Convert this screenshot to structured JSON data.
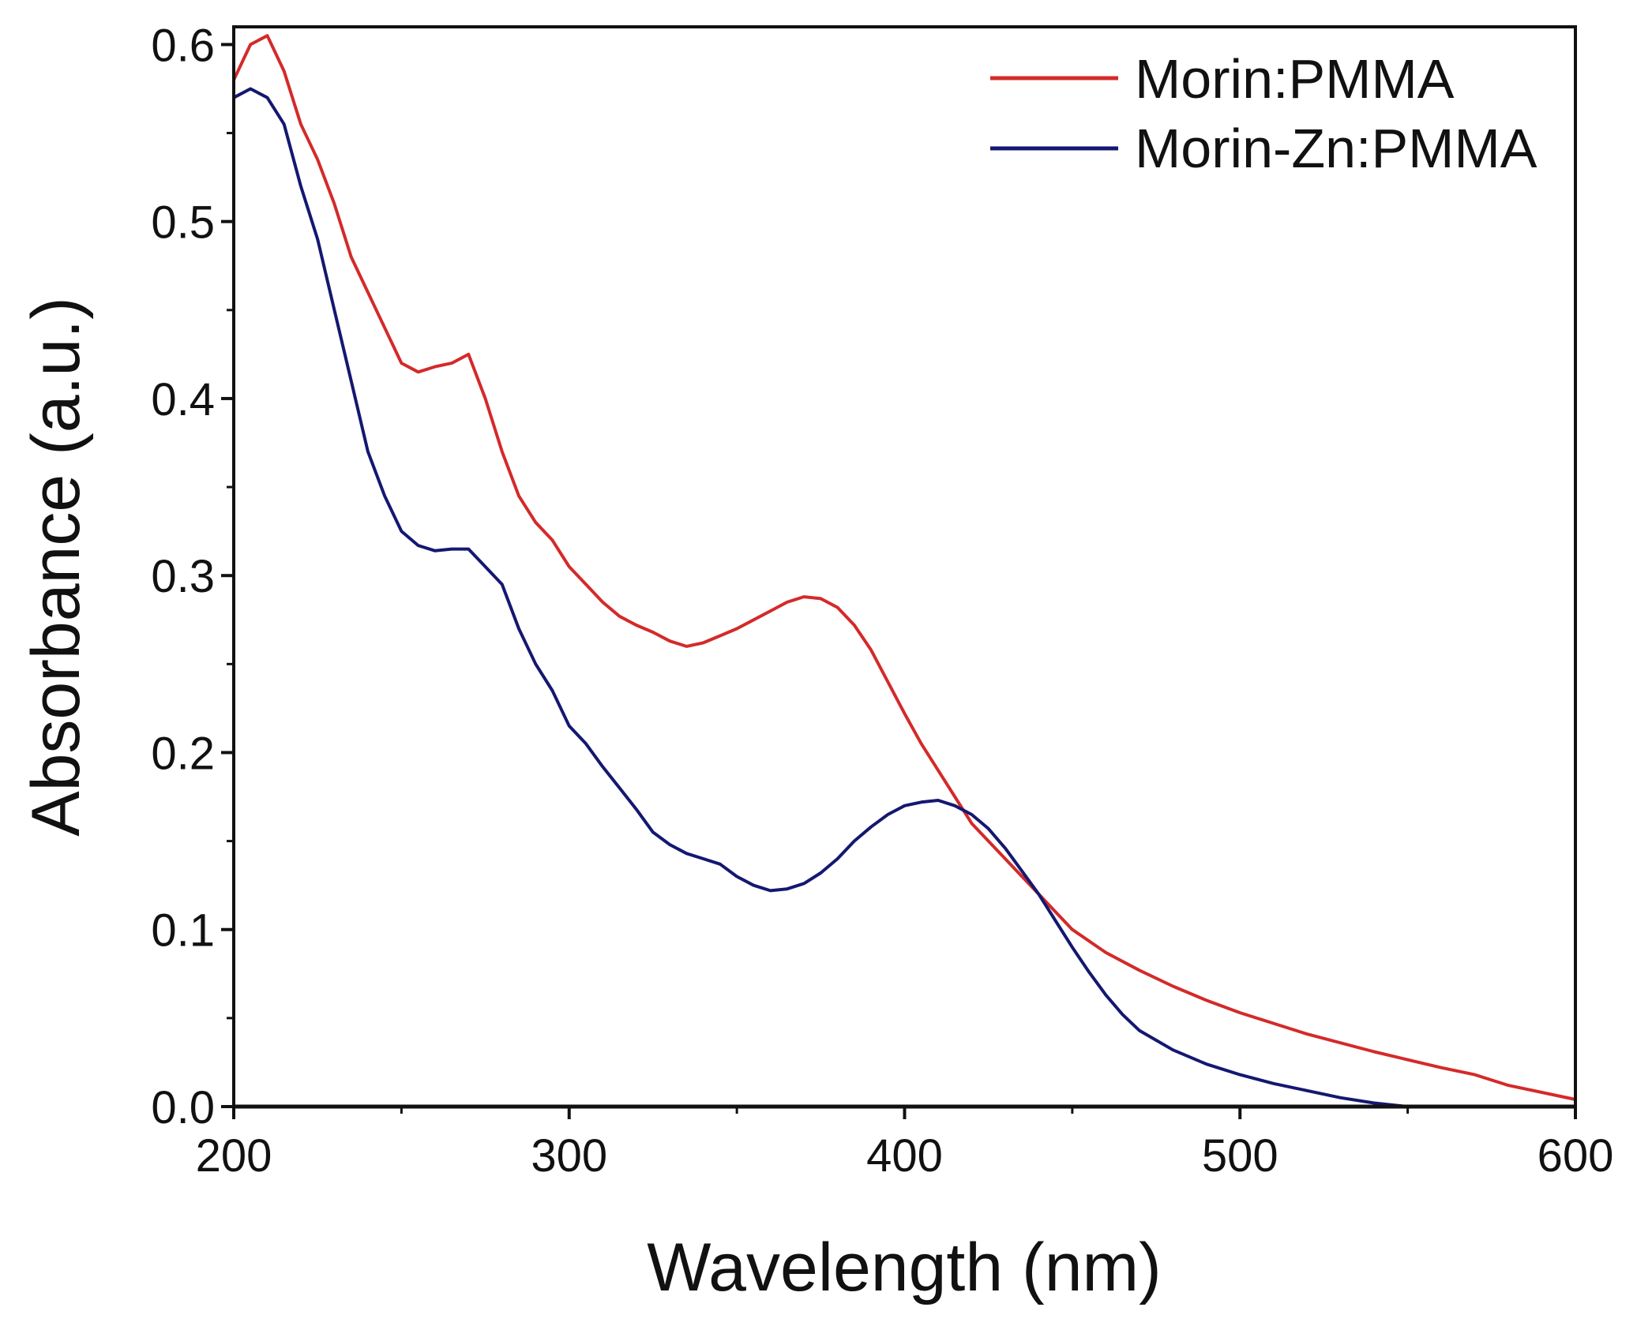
{
  "chart_data": {
    "type": "line",
    "title": "",
    "xlabel": "Wavelength (nm)",
    "ylabel": "Absorbance (a.u.)",
    "xlim": [
      200,
      600
    ],
    "ylim": [
      0,
      0.61
    ],
    "xticks": [
      "200",
      "300",
      "400",
      "500",
      "600"
    ],
    "yticks": [
      "0.0",
      "0.1",
      "0.2",
      "0.3",
      "0.4",
      "0.5",
      "0.6"
    ],
    "grid": false,
    "legend_position": "top-right",
    "series": [
      {
        "name": "Morin:PMMA",
        "color": "#d42a2a",
        "x": [
          200,
          205,
          210,
          215,
          220,
          225,
          230,
          235,
          240,
          245,
          250,
          255,
          260,
          265,
          270,
          275,
          280,
          285,
          290,
          295,
          300,
          305,
          310,
          315,
          320,
          325,
          330,
          335,
          340,
          345,
          350,
          355,
          360,
          365,
          370,
          375,
          380,
          385,
          390,
          395,
          400,
          405,
          410,
          415,
          420,
          430,
          440,
          450,
          460,
          470,
          480,
          490,
          500,
          520,
          540,
          560,
          570,
          580,
          600
        ],
        "y": [
          0.58,
          0.6,
          0.605,
          0.585,
          0.555,
          0.535,
          0.51,
          0.48,
          0.46,
          0.44,
          0.42,
          0.415,
          0.418,
          0.42,
          0.425,
          0.4,
          0.37,
          0.345,
          0.33,
          0.32,
          0.305,
          0.295,
          0.285,
          0.277,
          0.272,
          0.268,
          0.263,
          0.26,
          0.262,
          0.266,
          0.27,
          0.275,
          0.28,
          0.285,
          0.288,
          0.287,
          0.282,
          0.272,
          0.258,
          0.24,
          0.222,
          0.205,
          0.19,
          0.175,
          0.16,
          0.14,
          0.12,
          0.1,
          0.087,
          0.077,
          0.068,
          0.06,
          0.053,
          0.041,
          0.031,
          0.022,
          0.018,
          0.012,
          0.004
        ]
      },
      {
        "name": "Morin-Zn:PMMA",
        "color": "#141870",
        "x": [
          200,
          205,
          210,
          215,
          220,
          225,
          230,
          235,
          240,
          245,
          250,
          255,
          260,
          265,
          270,
          275,
          280,
          285,
          290,
          295,
          300,
          305,
          310,
          315,
          320,
          325,
          330,
          335,
          340,
          345,
          350,
          355,
          360,
          365,
          370,
          375,
          380,
          385,
          390,
          395,
          400,
          405,
          410,
          415,
          420,
          425,
          430,
          435,
          440,
          445,
          450,
          455,
          460,
          465,
          470,
          480,
          490,
          500,
          510,
          520,
          530,
          540,
          550
        ],
        "y": [
          0.57,
          0.575,
          0.57,
          0.555,
          0.52,
          0.49,
          0.45,
          0.41,
          0.37,
          0.345,
          0.325,
          0.317,
          0.314,
          0.315,
          0.315,
          0.305,
          0.295,
          0.27,
          0.25,
          0.235,
          0.215,
          0.205,
          0.192,
          0.18,
          0.168,
          0.155,
          0.148,
          0.143,
          0.14,
          0.137,
          0.13,
          0.125,
          0.122,
          0.123,
          0.126,
          0.132,
          0.14,
          0.15,
          0.158,
          0.165,
          0.17,
          0.172,
          0.173,
          0.17,
          0.165,
          0.157,
          0.146,
          0.133,
          0.12,
          0.105,
          0.09,
          0.076,
          0.063,
          0.052,
          0.043,
          0.032,
          0.024,
          0.018,
          0.013,
          0.009,
          0.005,
          0.002,
          0.0
        ]
      }
    ]
  }
}
